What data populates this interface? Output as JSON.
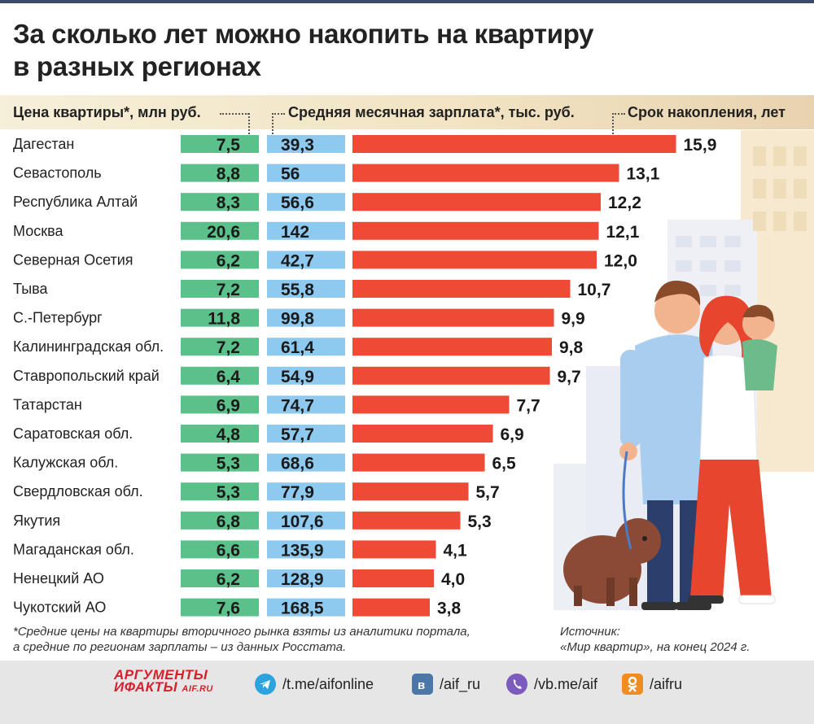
{
  "title": {
    "line1": "За сколько лет можно накопить на квартиру",
    "line2": "в разных регионах"
  },
  "headers": {
    "price": "Цена квартиры*, млн руб.",
    "salary": "Средняя месячная зарплата*, тыс. руб.",
    "years": "Срок накопления, лет"
  },
  "colors": {
    "price_cell": "#5cc08a",
    "salary_cell": "#8ec9ef",
    "bar": "#ef4a35"
  },
  "chart_data": {
    "type": "bar",
    "orientation": "horizontal",
    "categories": [
      "Дагестан",
      "Севастополь",
      "Республика Алтай",
      "Москва",
      "Северная Осетия",
      "Тыва",
      "С.-Петербург",
      "Калининградская обл.",
      "Ставропольский край",
      "Татарстан",
      "Саратовская обл.",
      "Калужская обл.",
      "Свердловская обл.",
      "Якутия",
      "Магаданская обл.",
      "Ненецкий АО",
      "Чукотский АО"
    ],
    "price_labels": [
      "7,5",
      "8,8",
      "8,3",
      "20,6",
      "6,2",
      "7,2",
      "11,8",
      "7,2",
      "6,4",
      "6,9",
      "4,8",
      "5,3",
      "5,3",
      "6,8",
      "6,6",
      "6,2",
      "7,6"
    ],
    "salary_labels": [
      "39,3",
      "56",
      "56,6",
      "142",
      "42,7",
      "55,8",
      "99,8",
      "61,4",
      "54,9",
      "74,7",
      "57,7",
      "68,6",
      "77,9",
      "107,6",
      "135,9",
      "128,9",
      "168,5"
    ],
    "years": [
      15.9,
      13.1,
      12.2,
      12.1,
      12.0,
      10.7,
      9.9,
      9.8,
      9.7,
      7.7,
      6.9,
      6.5,
      5.7,
      5.3,
      4.1,
      4.0,
      3.8
    ],
    "years_labels": [
      "15,9",
      "13,1",
      "12,2",
      "12,1",
      "12,0",
      "10,7",
      "9,9",
      "9,8",
      "9,7",
      "7,7",
      "6,9",
      "6,5",
      "5,7",
      "5,3",
      "4,1",
      "4,0",
      "3,8"
    ],
    "xlim": [
      0,
      16
    ]
  },
  "footnote": {
    "line1": "*Средние цены на квартиры вторичного рынка взяты из аналитики портала,",
    "line2": "а средние по регионам зарплаты – из данных Росстата."
  },
  "source": {
    "line1": "Источник:",
    "line2": "«Мир квартир», на конец 2024 г."
  },
  "footer": {
    "logo_line1": "АРГУМЕНТЫ",
    "logo_line2": "ИФАКТЫ",
    "logo_small": "AIF.RU",
    "links": [
      {
        "icon": "telegram-icon",
        "text": "/t.me/aifonline",
        "color": "#2aa3df"
      },
      {
        "icon": "vk-icon",
        "text": "/aif_ru",
        "color": "#4a76a8"
      },
      {
        "icon": "viber-icon",
        "text": "/vb.me/aif",
        "color": "#7d5bbe"
      },
      {
        "icon": "ok-icon",
        "text": "/aifru",
        "color": "#f28c20"
      }
    ]
  }
}
